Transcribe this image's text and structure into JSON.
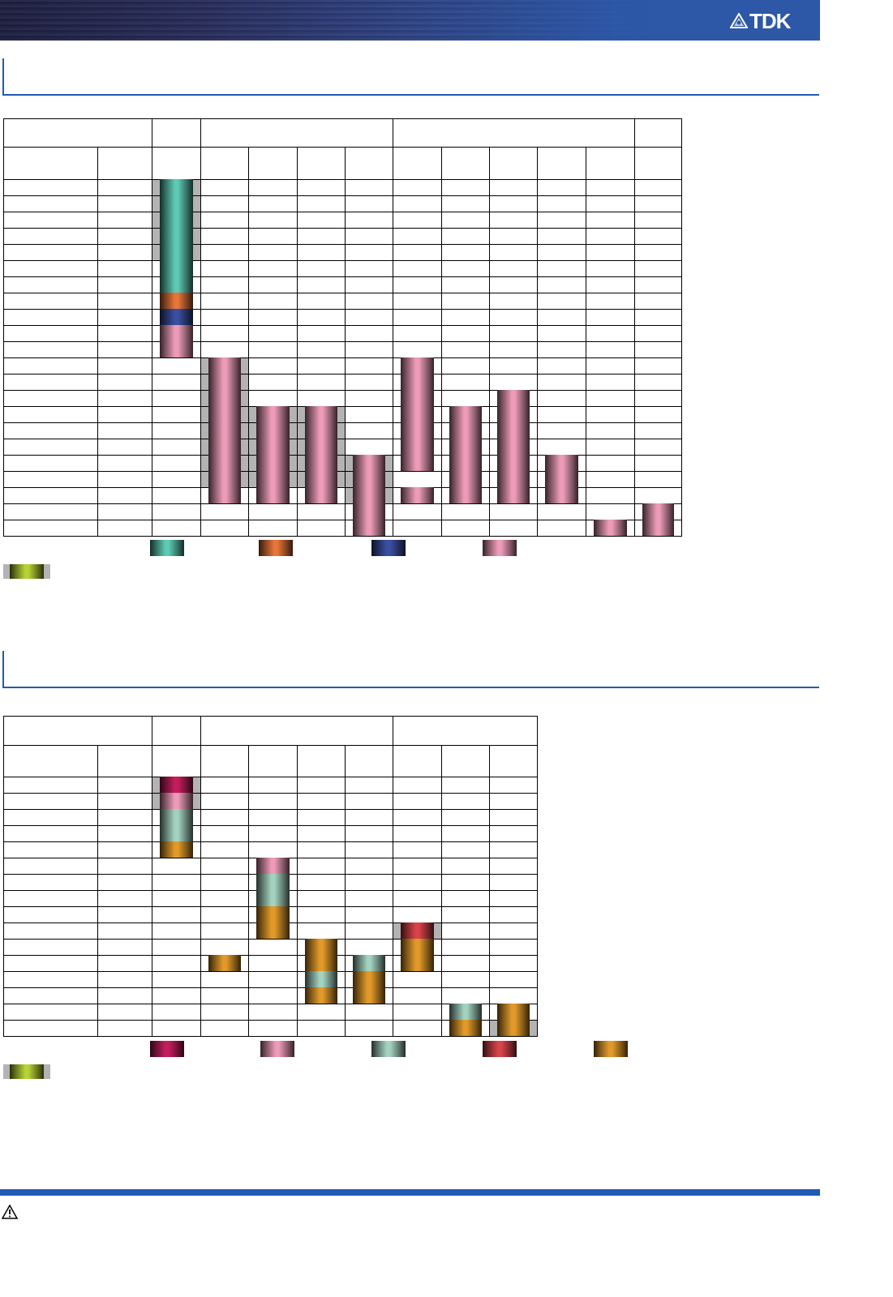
{
  "header": {
    "logo_text": "TDK",
    "logo_icon": "tdk-emblem-icon"
  },
  "colors": {
    "teal": "#5ec9b4",
    "orange": "#e8753a",
    "blue": "#3b4fa0",
    "pink": "#ec9bb8",
    "magenta": "#c41d5e",
    "sage": "#a3d3c0",
    "red": "#d9434a",
    "gold": "#e19a2a",
    "green": "#b6d334",
    "shade": "#b3b3b3",
    "accent": "#1f5bb5"
  },
  "tables": [
    {
      "name": "table-1",
      "columns": 13,
      "body_rows": 22,
      "header_groups": [
        [
          0,
          2
        ],
        [
          2,
          3
        ],
        [
          3,
          7
        ],
        [
          7,
          12
        ],
        [
          12,
          13
        ]
      ],
      "shaded": [
        [
          2,
          0,
          5
        ],
        [
          3,
          11,
          19
        ],
        [
          4,
          14,
          19
        ],
        [
          5,
          14,
          19
        ],
        [
          6,
          17,
          20
        ]
      ],
      "bars": [
        [
          2,
          0,
          7,
          "teal"
        ],
        [
          2,
          7,
          8,
          "orange"
        ],
        [
          2,
          8,
          9,
          "blue"
        ],
        [
          2,
          9,
          11,
          "pink"
        ],
        [
          3,
          11,
          20,
          "pink"
        ],
        [
          4,
          14,
          20,
          "pink"
        ],
        [
          5,
          14,
          20,
          "pink"
        ],
        [
          6,
          17,
          22,
          "pink"
        ],
        [
          7,
          11,
          18,
          "pink"
        ],
        [
          7,
          19,
          20,
          "pink"
        ],
        [
          8,
          14,
          20,
          "pink"
        ],
        [
          9,
          13,
          20,
          "pink"
        ],
        [
          10,
          17,
          20,
          "pink"
        ],
        [
          11,
          21,
          22,
          "pink"
        ],
        [
          12,
          20,
          22,
          "pink"
        ]
      ],
      "legend": [
        "teal",
        "orange",
        "blue",
        "pink"
      ]
    },
    {
      "name": "table-2",
      "columns": 10,
      "body_rows": 16,
      "header_groups": [
        [
          0,
          2
        ],
        [
          2,
          3
        ],
        [
          3,
          7
        ],
        [
          7,
          10
        ]
      ],
      "shaded": [
        [
          2,
          0,
          2
        ],
        [
          7,
          9,
          10
        ],
        [
          9,
          15,
          16
        ]
      ],
      "bars": [
        [
          2,
          0,
          1,
          "magenta"
        ],
        [
          2,
          1,
          2,
          "pink"
        ],
        [
          2,
          2,
          4,
          "sage"
        ],
        [
          2,
          4,
          5,
          "gold"
        ],
        [
          3,
          11,
          12,
          "gold"
        ],
        [
          4,
          5,
          6,
          "pink"
        ],
        [
          4,
          6,
          8,
          "sage"
        ],
        [
          4,
          8,
          10,
          "gold"
        ],
        [
          5,
          10,
          12,
          "gold"
        ],
        [
          5,
          12,
          13,
          "sage"
        ],
        [
          5,
          13,
          14,
          "gold"
        ],
        [
          6,
          11,
          12,
          "sage"
        ],
        [
          6,
          12,
          14,
          "gold"
        ],
        [
          7,
          9,
          10,
          "red"
        ],
        [
          7,
          10,
          12,
          "gold"
        ],
        [
          8,
          14,
          15,
          "sage"
        ],
        [
          8,
          15,
          16,
          "gold"
        ],
        [
          9,
          14,
          16,
          "gold"
        ]
      ],
      "legend": [
        "magenta",
        "pink",
        "sage",
        "red",
        "gold"
      ]
    }
  ],
  "footer": {
    "warning_icon": "warning-icon"
  }
}
